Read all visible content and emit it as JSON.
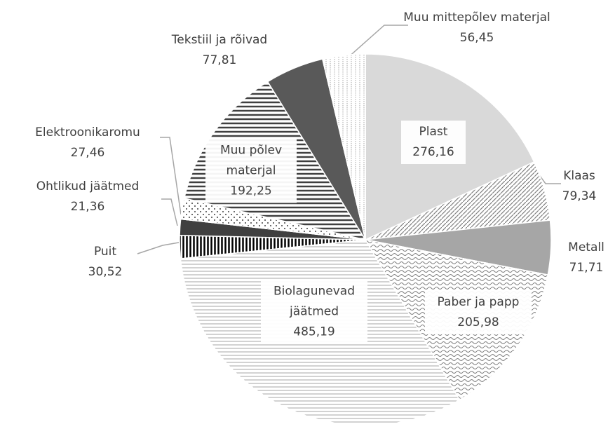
{
  "chart_data": {
    "type": "pie",
    "categories": [
      "Plast",
      "Klaas",
      "Metall",
      "Paber ja papp",
      "Biolagunevad jäätmed",
      "Puit",
      "Ohtlikud jäätmed",
      "Elektroonikaromu",
      "Muu põlev materjal",
      "Tekstiil ja rõivad",
      "Muu mittepõlev materjal"
    ],
    "values": [
      276.16,
      79.34,
      71.71,
      205.98,
      485.19,
      30.52,
      21.36,
      27.46,
      192.25,
      77.81,
      56.45
    ],
    "value_labels": [
      "276,16",
      "79,34",
      "71,71",
      "205,98",
      "485,19",
      "30,52",
      "21,36",
      "27,46",
      "192,25",
      "77,81",
      "56,45"
    ],
    "colors": [
      "#d9d9d9",
      "#ffffff",
      "#a6a6a6",
      "#ffffff",
      "#ffffff",
      "#ffffff",
      "#404040",
      "#ffffff",
      "#ffffff",
      "#595959",
      "#ffffff"
    ],
    "patterns": [
      null,
      "diag",
      null,
      "wave",
      "hlines-light",
      "vstripe",
      null,
      "dots",
      "hlines-dark",
      null,
      "grid"
    ]
  }
}
